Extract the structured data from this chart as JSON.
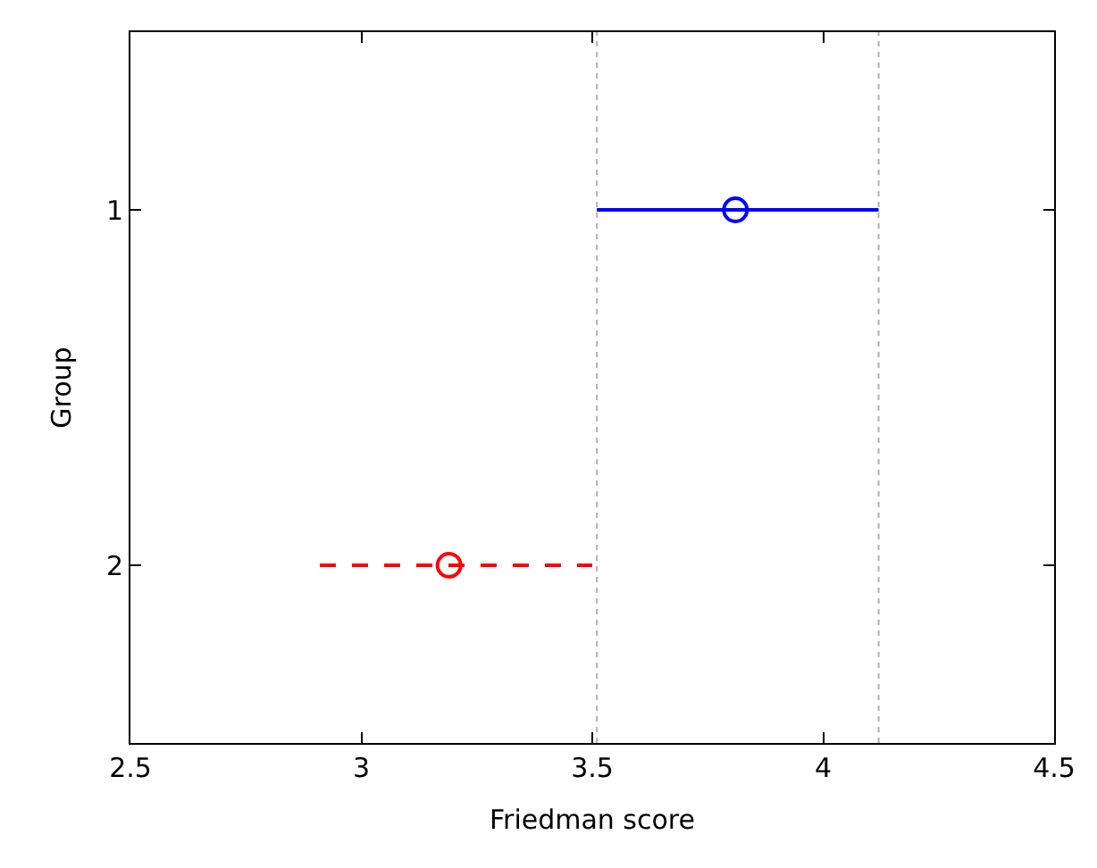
{
  "chart_data": {
    "type": "scatter",
    "xlabel": "Friedman score",
    "ylabel": "Group",
    "xlim": [
      2.5,
      4.5
    ],
    "xticks": [
      2.5,
      3,
      3.5,
      4,
      4.5
    ],
    "ylim": [
      2.5,
      0.5
    ],
    "yticks": [
      1,
      2
    ],
    "marker": "circle",
    "series": [
      {
        "color": "#0000ff",
        "x": [
          3.81
        ],
        "values": [
          1
        ],
        "xerrors": [
          [
            3.51,
            4.12
          ]
        ],
        "line_style": "solid"
      },
      {
        "color": "#ff0000",
        "x": [
          3.19
        ],
        "values": [
          2
        ],
        "xerrors": [
          [
            2.91,
            3.5
          ]
        ],
        "line_style": "dashed"
      }
    ],
    "ref_lines": [
      {
        "axis": "x",
        "value": 3.51,
        "color": "#b0b0b0",
        "line_style": "dotted"
      },
      {
        "axis": "x",
        "value": 4.12,
        "color": "#b0b0b0",
        "line_style": "dotted"
      }
    ]
  }
}
